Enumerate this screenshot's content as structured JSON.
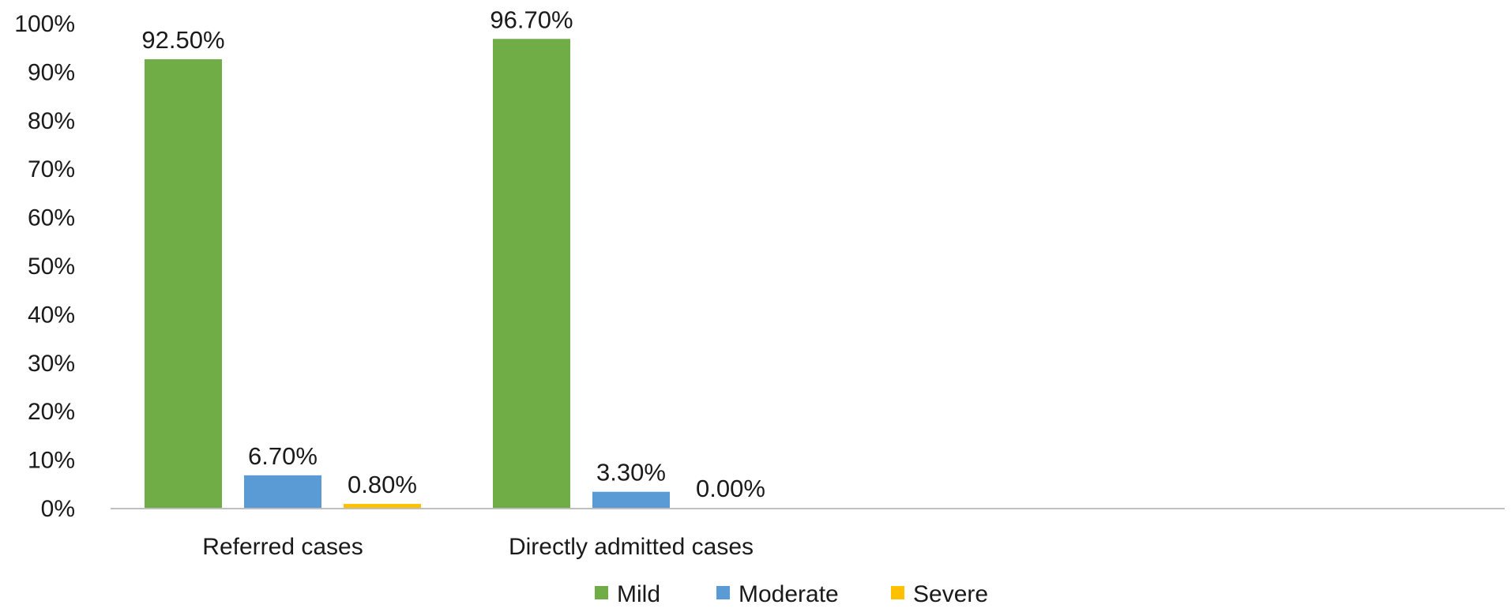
{
  "chart_data": {
    "type": "bar",
    "title": "",
    "xlabel": "",
    "ylabel": "",
    "categories": [
      "Referred cases",
      "Directly admitted cases"
    ],
    "series": [
      {
        "name": "Mild",
        "color": "#70ad47",
        "values": [
          92.5,
          96.7
        ],
        "labels": [
          "92.50%",
          "96.70%"
        ]
      },
      {
        "name": "Moderate",
        "color": "#5b9bd5",
        "values": [
          6.7,
          3.3
        ],
        "labels": [
          "6.70%",
          "3.30%"
        ]
      },
      {
        "name": "Severe",
        "color": "#ffc000",
        "values": [
          0.8,
          0.0
        ],
        "labels": [
          "0.80%",
          "0.00%"
        ]
      }
    ],
    "ylim": [
      0,
      100
    ],
    "yticks": [
      0,
      10,
      20,
      30,
      40,
      50,
      60,
      70,
      80,
      90,
      100
    ],
    "ytick_labels": [
      "0%",
      "10%",
      "20%",
      "30%",
      "40%",
      "50%",
      "60%",
      "70%",
      "80%",
      "90%",
      "100%"
    ],
    "grid": false,
    "legend": "bottom-center",
    "axis_color": "#bfbfbf"
  }
}
